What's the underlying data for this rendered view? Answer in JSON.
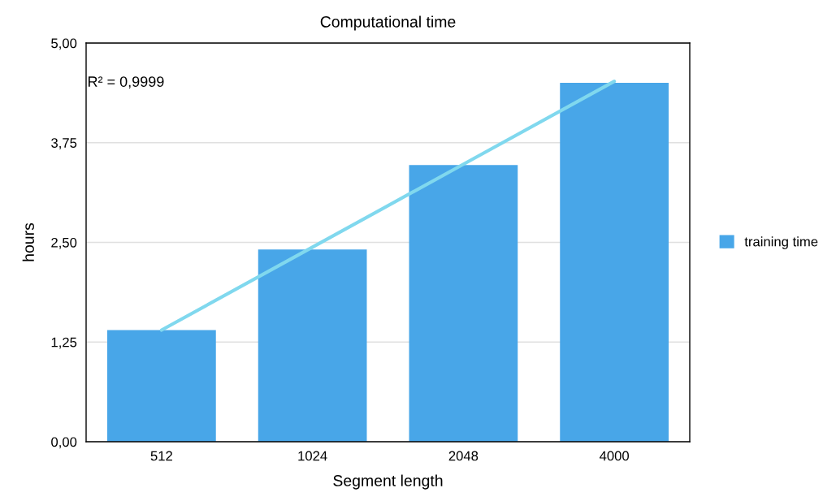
{
  "chart_data": {
    "type": "bar",
    "title": "Computational time",
    "xlabel": "Segment length",
    "ylabel": "hours",
    "categories": [
      "512",
      "1024",
      "2048",
      "4000"
    ],
    "series": [
      {
        "name": "training time",
        "color": "#48a6e8",
        "values": [
          1.4,
          2.41,
          3.47,
          4.5
        ]
      },
      {
        "type": "line",
        "color": "#80d8ee",
        "values": [
          1.4,
          2.44,
          3.48,
          4.52
        ]
      }
    ],
    "annotations": [
      "R² = 0,9999"
    ],
    "ylim": [
      0,
      5
    ],
    "yticks": [
      {
        "value": 0,
        "label": "0,00"
      },
      {
        "value": 1.25,
        "label": "1,25"
      },
      {
        "value": 2.5,
        "label": "2,50"
      },
      {
        "value": 3.75,
        "label": "3,75"
      },
      {
        "value": 5,
        "label": "5,00"
      }
    ],
    "grid": "y",
    "legend": "right"
  }
}
